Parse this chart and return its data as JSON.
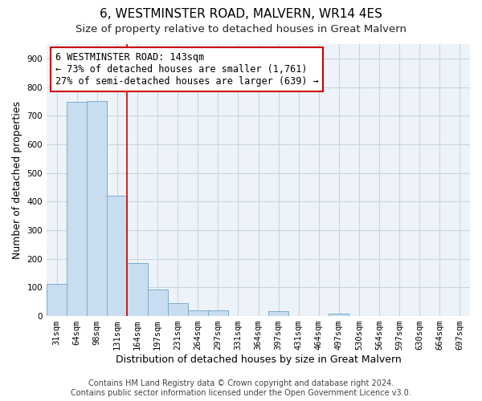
{
  "title": "6, WESTMINSTER ROAD, MALVERN, WR14 4ES",
  "subtitle": "Size of property relative to detached houses in Great Malvern",
  "xlabel": "Distribution of detached houses by size in Great Malvern",
  "ylabel": "Number of detached properties",
  "bar_labels": [
    "31sqm",
    "64sqm",
    "98sqm",
    "131sqm",
    "164sqm",
    "197sqm",
    "231sqm",
    "264sqm",
    "297sqm",
    "331sqm",
    "364sqm",
    "397sqm",
    "431sqm",
    "464sqm",
    "497sqm",
    "530sqm",
    "564sqm",
    "597sqm",
    "630sqm",
    "664sqm",
    "697sqm"
  ],
  "bar_values": [
    113,
    748,
    750,
    420,
    185,
    93,
    45,
    20,
    20,
    0,
    0,
    18,
    0,
    0,
    10,
    0,
    0,
    0,
    0,
    0,
    0
  ],
  "bar_color": "#c8ddf0",
  "bar_edge_color": "#7aadce",
  "vline_x": 3.5,
  "vline_color": "#cc0000",
  "annotation_text": "6 WESTMINSTER ROAD: 143sqm\n← 73% of detached houses are smaller (1,761)\n27% of semi-detached houses are larger (639) →",
  "ylim": [
    0,
    950
  ],
  "yticks": [
    0,
    100,
    200,
    300,
    400,
    500,
    600,
    700,
    800,
    900
  ],
  "footer_line1": "Contains HM Land Registry data © Crown copyright and database right 2024.",
  "footer_line2": "Contains public sector information licensed under the Open Government Licence v3.0.",
  "bg_color": "#ffffff",
  "plot_bg_color": "#eef3f9",
  "grid_color": "#c8d4e3",
  "title_fontsize": 11,
  "subtitle_fontsize": 9.5,
  "axis_label_fontsize": 9,
  "tick_fontsize": 7.5,
  "annotation_fontsize": 8.5,
  "footer_fontsize": 7
}
